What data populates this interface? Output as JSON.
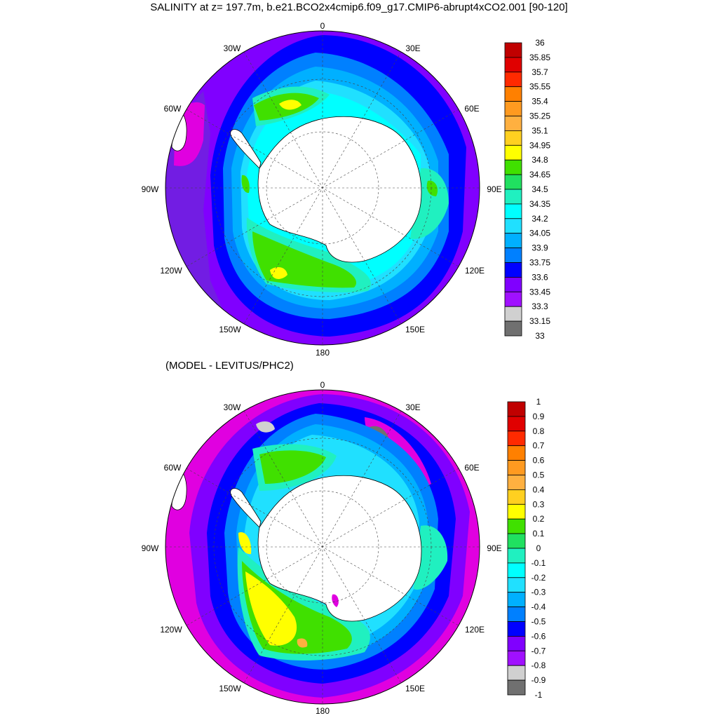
{
  "title": "SALINITY at z= 197.7m, b.e21.BCO2x4cmip6.f09_g17.CMIP6-abrupt4xCO2.001 [90-120]",
  "diff_subtitle": "(MODEL - LEVITUS/PHC2)",
  "lon_labels": [
    "0",
    "30E",
    "60E",
    "90E",
    "120E",
    "150E",
    "180",
    "150W",
    "120W",
    "90W",
    "60W",
    "30W"
  ],
  "salinity_colorbar": {
    "labels": [
      "36",
      "35.85",
      "35.7",
      "35.55",
      "35.4",
      "35.25",
      "35.1",
      "34.95",
      "34.8",
      "34.65",
      "34.5",
      "34.35",
      "34.2",
      "34.05",
      "33.9",
      "33.75",
      "33.6",
      "33.45",
      "33.3",
      "33.15",
      "33"
    ],
    "colors": [
      "#c00000",
      "#e00000",
      "#ff2a00",
      "#ff8000",
      "#ff9a20",
      "#ffb040",
      "#ffd020",
      "#ffff00",
      "#40e000",
      "#20e060",
      "#20f0c0",
      "#00ffff",
      "#20e0ff",
      "#00b0ff",
      "#0080ff",
      "#0000ff",
      "#8000ff",
      "#a010ff",
      "#d0d0d0",
      "#707070"
    ]
  },
  "difference_colorbar": {
    "labels": [
      "1",
      "0.9",
      "0.8",
      "0.7",
      "0.6",
      "0.5",
      "0.4",
      "0.3",
      "0.2",
      "0.1",
      "0",
      "-0.1",
      "-0.2",
      "-0.3",
      "-0.4",
      "-0.5",
      "-0.6",
      "-0.7",
      "-0.8",
      "-0.9",
      "-1"
    ],
    "colors": [
      "#c00000",
      "#e00000",
      "#ff2a00",
      "#ff8000",
      "#ff9a20",
      "#ffb040",
      "#ffd020",
      "#ffff00",
      "#40e000",
      "#20e060",
      "#20f0c0",
      "#00ffff",
      "#20e0ff",
      "#00b0ff",
      "#0080ff",
      "#0000ff",
      "#8000ff",
      "#a010ff",
      "#d0d0d0",
      "#707070"
    ]
  },
  "colors": {
    "land": "#ffffff",
    "background": "#ffffff"
  }
}
